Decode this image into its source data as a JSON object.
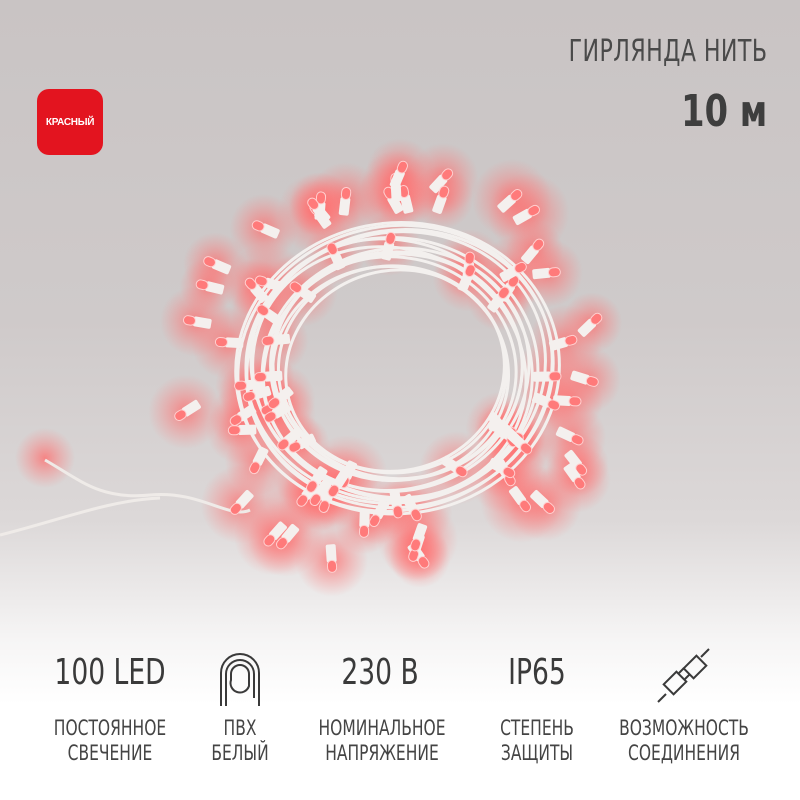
{
  "badge": {
    "color_label": "КРАСНЫЙ",
    "color": "#e3141f"
  },
  "header": {
    "title_light": "ГИРЛЯНДА",
    "title_bold": "НИТЬ",
    "length": "10 м"
  },
  "product": {
    "led_color": "#ff5a5a",
    "wire_color": "#f2efec"
  },
  "features": [
    {
      "value": "100 LED",
      "label_line1": "ПОСТОЯННОЕ",
      "label_line2": "СВЕЧЕНИЕ"
    },
    {
      "icon": "pvc-wire-coil-icon",
      "label_line1": "ПВХ",
      "label_line2": "БЕЛЫЙ"
    },
    {
      "value": "230 В",
      "label_line1": "НОМИНАЛЬНОЕ",
      "label_line2": "НАПРЯЖЕНИЕ"
    },
    {
      "value": "IP65",
      "label_line1": "СТЕПЕНЬ",
      "label_line2": "ЗАЩИТЫ"
    },
    {
      "icon": "connector-plug-icon",
      "label_line1": "ВОЗМОЖНОСТЬ",
      "label_line2": "СОЕДИНЕНИЯ"
    }
  ]
}
